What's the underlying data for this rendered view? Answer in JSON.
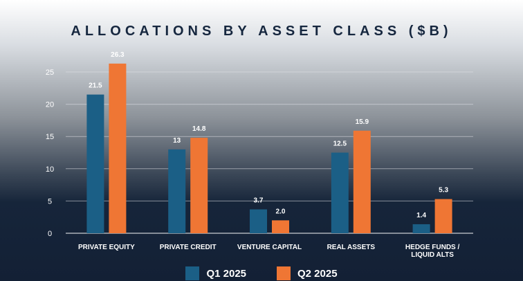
{
  "chart_data": {
    "type": "bar",
    "title": "ALLOCATIONS BY ASSET CLASS ($B)",
    "xlabel": "",
    "ylabel": "",
    "categories": [
      [
        "PRIVATE EQUITY"
      ],
      [
        "PRIVATE CREDIT"
      ],
      [
        "VENTURE CAPITAL"
      ],
      [
        "REAL ASSETS"
      ],
      [
        "HEDGE FUNDS /",
        "LIQUID ALTS"
      ]
    ],
    "series": [
      {
        "name": "Q1 2025",
        "color": "#1b5f86",
        "values": [
          21.5,
          13,
          3.7,
          12.5,
          1.4
        ],
        "labels": [
          "21.5",
          "13",
          "3.7",
          "12.5",
          "1.4"
        ]
      },
      {
        "name": "Q2 2025",
        "color": "#ef7634",
        "values": [
          26.3,
          14.8,
          2.0,
          15.9,
          5.3
        ],
        "labels": [
          "26.3",
          "14.8",
          "2.0",
          "15.9",
          "5.3"
        ]
      }
    ],
    "ylim": [
      0,
      25
    ],
    "yticks": [
      "0",
      "5",
      "10",
      "15",
      "20",
      "25"
    ],
    "grid": true,
    "legend_position": "bottom"
  }
}
